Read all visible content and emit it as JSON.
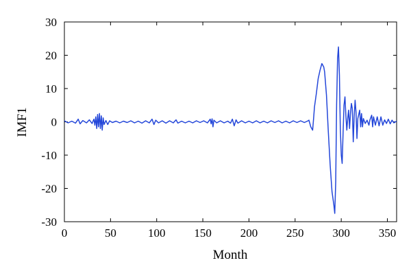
{
  "chart_data": {
    "type": "line",
    "title": "",
    "xlabel": "Month",
    "ylabel": "IMF1",
    "xlim": [
      0,
      360
    ],
    "ylim": [
      -30,
      30
    ],
    "xticks": [
      0,
      50,
      100,
      150,
      200,
      250,
      300,
      350
    ],
    "yticks": [
      -30,
      -20,
      -10,
      0,
      10,
      20,
      30
    ],
    "grid": false,
    "line_color": "#2346d9",
    "series": [
      {
        "name": "",
        "points": [
          [
            0,
            0.3
          ],
          [
            4,
            -0.3
          ],
          [
            8,
            0.2
          ],
          [
            12,
            -0.4
          ],
          [
            15,
            0.8
          ],
          [
            17,
            -0.6
          ],
          [
            20,
            0.4
          ],
          [
            24,
            -0.3
          ],
          [
            27,
            0.6
          ],
          [
            30,
            -0.5
          ],
          [
            32,
            0.8
          ],
          [
            33,
            -1.0
          ],
          [
            34,
            1.5
          ],
          [
            35,
            -2.0
          ],
          [
            36,
            2.2
          ],
          [
            37,
            -1.5
          ],
          [
            38,
            2.5
          ],
          [
            39,
            -2.0
          ],
          [
            40,
            1.8
          ],
          [
            41,
            -2.5
          ],
          [
            42,
            1.2
          ],
          [
            43,
            -0.8
          ],
          [
            45,
            0.4
          ],
          [
            47,
            -0.8
          ],
          [
            49,
            0.3
          ],
          [
            52,
            -0.2
          ],
          [
            56,
            0.2
          ],
          [
            60,
            -0.3
          ],
          [
            64,
            0.2
          ],
          [
            68,
            -0.2
          ],
          [
            72,
            0.3
          ],
          [
            76,
            -0.3
          ],
          [
            80,
            0.2
          ],
          [
            84,
            -0.4
          ],
          [
            88,
            0.3
          ],
          [
            92,
            -0.3
          ],
          [
            95,
            0.8
          ],
          [
            97,
            -0.8
          ],
          [
            99,
            0.5
          ],
          [
            102,
            -0.3
          ],
          [
            106,
            0.3
          ],
          [
            110,
            -0.4
          ],
          [
            114,
            0.3
          ],
          [
            118,
            -0.3
          ],
          [
            121,
            0.6
          ],
          [
            123,
            -0.4
          ],
          [
            127,
            0.2
          ],
          [
            131,
            -0.3
          ],
          [
            135,
            0.2
          ],
          [
            139,
            -0.3
          ],
          [
            143,
            0.3
          ],
          [
            147,
            -0.2
          ],
          [
            151,
            0.3
          ],
          [
            155,
            -0.3
          ],
          [
            158,
            0.8
          ],
          [
            159,
            -0.6
          ],
          [
            160,
            0.9
          ],
          [
            161,
            -1.5
          ],
          [
            162,
            0.5
          ],
          [
            165,
            -0.3
          ],
          [
            169,
            0.3
          ],
          [
            173,
            -0.3
          ],
          [
            177,
            0.2
          ],
          [
            180,
            -0.4
          ],
          [
            182,
            0.8
          ],
          [
            184,
            -1.2
          ],
          [
            186,
            0.6
          ],
          [
            188,
            -0.4
          ],
          [
            192,
            0.3
          ],
          [
            196,
            -0.3
          ],
          [
            200,
            0.2
          ],
          [
            204,
            -0.3
          ],
          [
            208,
            0.3
          ],
          [
            212,
            -0.3
          ],
          [
            216,
            0.2
          ],
          [
            220,
            -0.3
          ],
          [
            224,
            0.3
          ],
          [
            228,
            -0.2
          ],
          [
            232,
            0.3
          ],
          [
            236,
            -0.3
          ],
          [
            240,
            0.2
          ],
          [
            244,
            -0.3
          ],
          [
            248,
            0.3
          ],
          [
            252,
            -0.2
          ],
          [
            256,
            0.3
          ],
          [
            260,
            -0.2
          ],
          [
            264,
            0.3
          ],
          [
            265,
            0.5
          ],
          [
            267,
            -1.5
          ],
          [
            269,
            -2.5
          ],
          [
            270,
            1.0
          ],
          [
            271,
            4.5
          ],
          [
            273,
            8.5
          ],
          [
            275,
            13.0
          ],
          [
            277,
            15.5
          ],
          [
            279,
            17.5
          ],
          [
            281,
            16.5
          ],
          [
            282,
            15.0
          ],
          [
            284,
            8.0
          ],
          [
            286,
            -3.0
          ],
          [
            288,
            -13.0
          ],
          [
            290,
            -21.0
          ],
          [
            292,
            -25.0
          ],
          [
            293,
            -27.5
          ],
          [
            294,
            -18.0
          ],
          [
            295,
            5.0
          ],
          [
            296,
            19.0
          ],
          [
            297,
            22.5
          ],
          [
            298,
            14.0
          ],
          [
            299,
            -2.0
          ],
          [
            300,
            -10.0
          ],
          [
            301,
            -12.5
          ],
          [
            302,
            -3.0
          ],
          [
            303,
            5.0
          ],
          [
            304,
            7.5
          ],
          [
            305,
            2.0
          ],
          [
            306,
            -2.5
          ],
          [
            307,
            1.0
          ],
          [
            308,
            3.5
          ],
          [
            309,
            -2.0
          ],
          [
            310,
            2.5
          ],
          [
            311,
            5.5
          ],
          [
            312,
            4.0
          ],
          [
            313,
            -6.0
          ],
          [
            314,
            1.5
          ],
          [
            315,
            6.5
          ],
          [
            316,
            3.0
          ],
          [
            317,
            -5.0
          ],
          [
            318,
            1.0
          ],
          [
            320,
            3.5
          ],
          [
            321,
            -1.5
          ],
          [
            322,
            2.5
          ],
          [
            323,
            -1.5
          ],
          [
            324,
            1.0
          ],
          [
            326,
            -0.5
          ],
          [
            328,
            0.5
          ],
          [
            330,
            -1.0
          ],
          [
            331,
            0.5
          ],
          [
            333,
            2.0
          ],
          [
            334,
            -1.5
          ],
          [
            335,
            1.5
          ],
          [
            337,
            -1.0
          ],
          [
            339,
            1.5
          ],
          [
            341,
            -1.2
          ],
          [
            343,
            1.5
          ],
          [
            345,
            -1.0
          ],
          [
            347,
            0.6
          ],
          [
            349,
            -0.5
          ],
          [
            351,
            0.8
          ],
          [
            353,
            -0.6
          ],
          [
            355,
            0.5
          ],
          [
            357,
            -0.3
          ],
          [
            360,
            0.2
          ]
        ]
      }
    ]
  }
}
